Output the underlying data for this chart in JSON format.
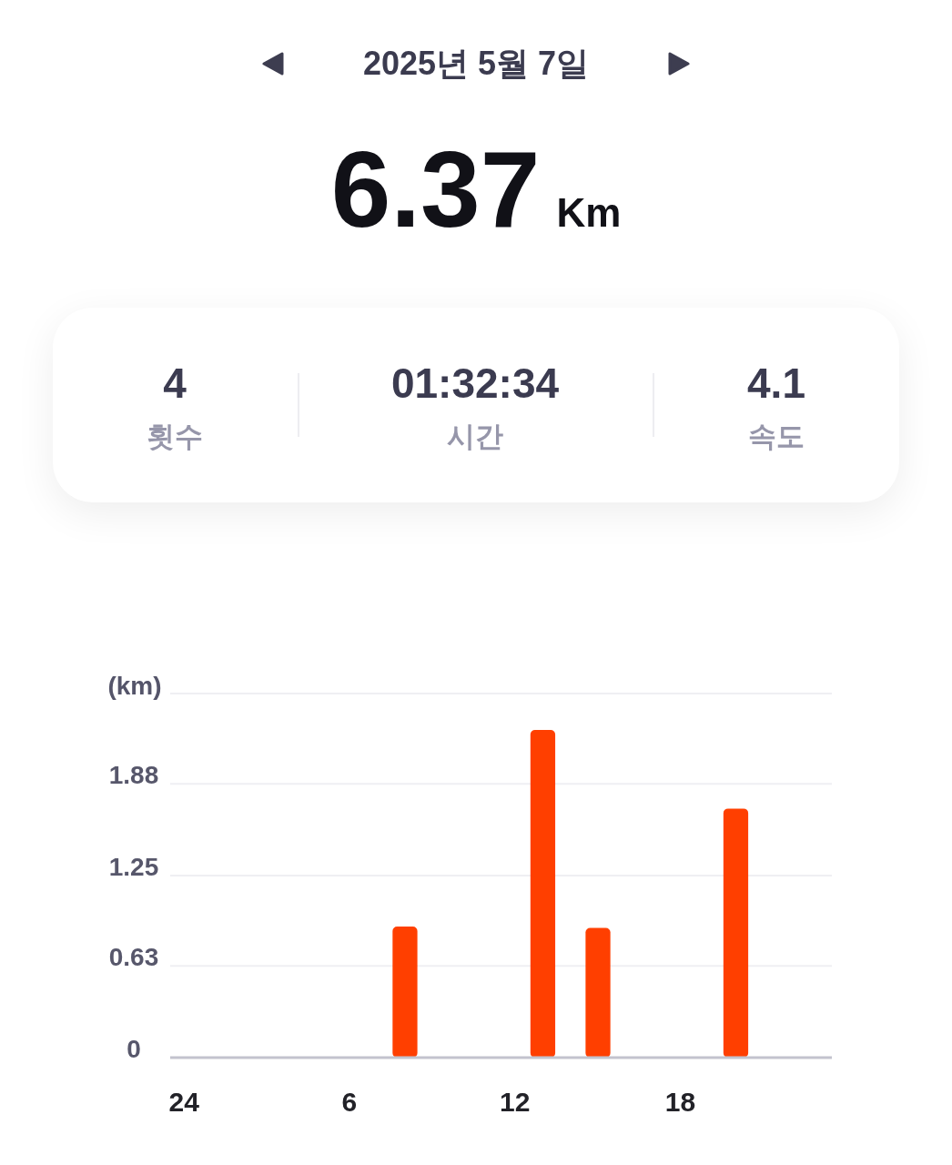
{
  "chart_data": {
    "type": "bar",
    "title": "2025년 5월 7일",
    "annotations": [
      "6.37",
      "Km",
      "4",
      "횟수",
      "01:32:34",
      "시간",
      "4.1",
      "속도"
    ],
    "ylabel": "(km)",
    "categories": [
      "24",
      null,
      null,
      null,
      null,
      null,
      "6",
      null,
      null,
      null,
      null,
      null,
      "12",
      null,
      null,
      null,
      null,
      null,
      "18",
      null,
      null,
      null,
      null,
      null
    ],
    "values": [
      null,
      null,
      null,
      null,
      null,
      null,
      null,
      null,
      0.9,
      null,
      null,
      null,
      null,
      2.25,
      null,
      0.89,
      null,
      null,
      null,
      null,
      1.71,
      null,
      null,
      null
    ],
    "color": "#ff3f00",
    "ylim": [
      0,
      2.5
    ],
    "yticks": [
      0,
      0.63,
      1.25,
      1.88
    ],
    "grid": "y"
  }
}
